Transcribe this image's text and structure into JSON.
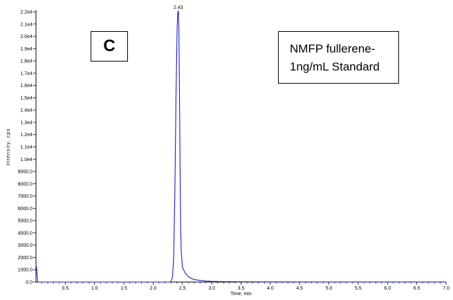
{
  "chart_data": {
    "type": "line",
    "xlabel": "Time, min",
    "ylabel": "Intensity, cps",
    "xlim": [
      0.0,
      7.0
    ],
    "ylim": [
      0,
      22000
    ],
    "x_ticks": [
      0.5,
      1.0,
      1.5,
      2.0,
      2.5,
      3.0,
      3.5,
      4.0,
      4.5,
      5.0,
      5.5,
      6.0,
      6.5,
      7.0
    ],
    "x_tick_labels": [
      "0.5",
      "1.0",
      "1.5",
      "2.0",
      "2.5",
      "3.0",
      "3.5",
      "4.0",
      "4.5",
      "5.0",
      "5.5",
      "6.0",
      "6.5",
      "7.0"
    ],
    "y_ticks": [
      0,
      1000,
      2000,
      3000,
      4000,
      5000,
      6000,
      7000,
      8000,
      9000,
      10000,
      11000,
      12000,
      13000,
      14000,
      15000,
      16000,
      17000,
      18000,
      19000,
      20000,
      21000,
      22000
    ],
    "y_tick_labels": [
      "0.0",
      "1000.0",
      "2000.0",
      "3000.0",
      "4000.0",
      "5000.0",
      "6000.0",
      "7000.0",
      "8000.0",
      "9000.0",
      "1.0e4",
      "1.1e4",
      "1.2e4",
      "1.3e4",
      "1.4e4",
      "1.5e4",
      "1.6e4",
      "1.7e4",
      "1.8e4",
      "1.9e4",
      "2.0e4",
      "2.1e4",
      "2.2e4"
    ],
    "series": [
      {
        "color": "#1a1acc",
        "x": [
          0.0,
          0.01,
          0.03,
          0.5,
          1.0,
          1.5,
          2.0,
          2.2,
          2.3,
          2.33,
          2.35,
          2.37,
          2.39,
          2.41,
          2.42,
          2.43,
          2.44,
          2.45,
          2.46,
          2.47,
          2.48,
          2.49,
          2.5,
          2.52,
          2.55,
          2.6,
          2.65,
          2.7,
          2.8,
          2.9,
          3.0,
          3.2,
          3.5,
          4.0,
          5.0,
          6.0,
          7.0
        ],
        "y": [
          1100,
          1200,
          0,
          0,
          0,
          0,
          0,
          0,
          0,
          400,
          2000,
          7000,
          15000,
          20800,
          21900,
          22100,
          20500,
          15000,
          9000,
          4500,
          2500,
          1800,
          1200,
          1000,
          700,
          450,
          300,
          200,
          130,
          80,
          50,
          30,
          20,
          10,
          5,
          5,
          5
        ]
      }
    ],
    "annotations": [
      {
        "text": "2.43",
        "x": 2.43,
        "y": 22100
      }
    ]
  },
  "panel_label": "C",
  "legend": {
    "line1": "NMFP fullerene-",
    "line2": "1ng/mL Standard"
  }
}
